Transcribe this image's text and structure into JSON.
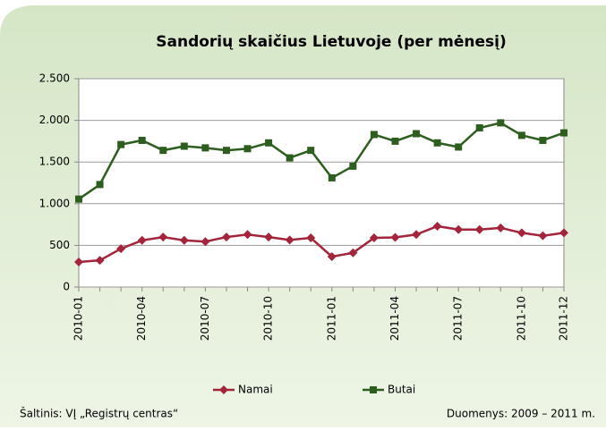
{
  "chart_data": {
    "type": "line",
    "title": "Sandorių skaičius Lietuvoje (per mėnesį)",
    "categories": [
      "2010-01",
      null,
      null,
      "2010-04",
      null,
      null,
      "2010-07",
      null,
      null,
      "2010-10",
      null,
      null,
      "2011-01",
      null,
      null,
      "2011-04",
      null,
      null,
      "2011-07",
      null,
      null,
      "2011-10",
      null,
      "2011-12"
    ],
    "series": [
      {
        "name": "Namai",
        "color": "#a3243b",
        "marker": "diamond",
        "values": [
          300,
          320,
          460,
          560,
          600,
          560,
          545,
          600,
          630,
          600,
          565,
          590,
          365,
          410,
          590,
          595,
          630,
          730,
          690,
          690,
          710,
          650,
          615,
          650
        ]
      },
      {
        "name": "Butai",
        "color": "#2e5e1f",
        "marker": "square",
        "values": [
          1055,
          1230,
          1710,
          1760,
          1640,
          1690,
          1670,
          1640,
          1660,
          1730,
          1550,
          1640,
          1310,
          1450,
          1830,
          1750,
          1840,
          1730,
          1680,
          1910,
          1970,
          1820,
          1760,
          1850
        ]
      }
    ],
    "ylim": [
      0,
      2500
    ],
    "yticks": [
      0,
      500,
      {
        "value": 1000,
        "label": "1.000"
      },
      {
        "value": 1500,
        "label": "1.500"
      },
      {
        "value": 2000,
        "label": "2.000"
      },
      {
        "value": 2500,
        "label": "2.500"
      }
    ],
    "grid": true,
    "legend": "bottom",
    "source": "Šaltinis: VĮ „Registrų centras“",
    "note": "Duomenys: 2009 – 2011 m."
  }
}
